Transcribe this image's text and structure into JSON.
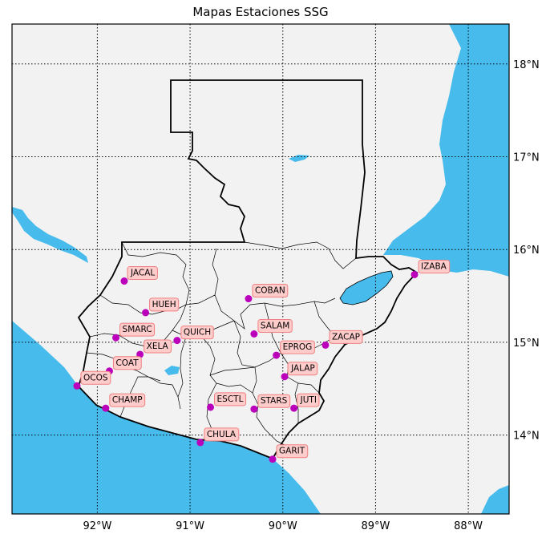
{
  "title": "Mapas Estaciones SSG",
  "colors": {
    "land": "#f2f2f2",
    "water": "#46bbec",
    "station": "#bb00bb",
    "label_fill": "#ffcccc",
    "label_stroke": "#f08080",
    "frame": "#000000"
  },
  "axes": {
    "lon_ticks": [
      {
        "value": -92,
        "label": "92°W"
      },
      {
        "value": -91,
        "label": "91°W"
      },
      {
        "value": -90,
        "label": "90°W"
      },
      {
        "value": -89,
        "label": "89°W"
      },
      {
        "value": -88,
        "label": "88°W"
      }
    ],
    "lat_ticks": [
      {
        "value": 18,
        "label": "18°N"
      },
      {
        "value": 17,
        "label": "17°N"
      },
      {
        "value": 16,
        "label": "16°N"
      },
      {
        "value": 15,
        "label": "15°N"
      },
      {
        "value": 14,
        "label": "14°N"
      }
    ],
    "lon_range": [
      -92.92,
      -87.56
    ],
    "lat_range": [
      13.15,
      18.43
    ],
    "grid": "dotted"
  },
  "stations": [
    {
      "name": "JACAL",
      "lon": -91.71,
      "lat": 15.66
    },
    {
      "name": "HUEH",
      "lon": -91.48,
      "lat": 15.32
    },
    {
      "name": "COBAN",
      "lon": -90.37,
      "lat": 15.47
    },
    {
      "name": "IZABA",
      "lon": -88.58,
      "lat": 15.73
    },
    {
      "name": "SMARC",
      "lon": -91.8,
      "lat": 15.05
    },
    {
      "name": "QUICH",
      "lon": -91.14,
      "lat": 15.02
    },
    {
      "name": "SALAM",
      "lon": -90.31,
      "lat": 15.09
    },
    {
      "name": "ZACAP",
      "lon": -89.54,
      "lat": 14.97
    },
    {
      "name": "XELA",
      "lon": -91.54,
      "lat": 14.87
    },
    {
      "name": "EPROG",
      "lon": -90.07,
      "lat": 14.86
    },
    {
      "name": "COAT",
      "lon": -91.87,
      "lat": 14.69
    },
    {
      "name": "JALAP",
      "lon": -89.98,
      "lat": 14.63
    },
    {
      "name": "OCOS",
      "lon": -92.22,
      "lat": 14.53
    },
    {
      "name": "CHAMP",
      "lon": -91.91,
      "lat": 14.29
    },
    {
      "name": "ESCTL",
      "lon": -90.78,
      "lat": 14.3
    },
    {
      "name": "STARS",
      "lon": -90.31,
      "lat": 14.28
    },
    {
      "name": "JUTI",
      "lon": -89.88,
      "lat": 14.29
    },
    {
      "name": "CHULA",
      "lon": -90.89,
      "lat": 13.92
    },
    {
      "name": "GARIT",
      "lon": -90.11,
      "lat": 13.74
    }
  ]
}
